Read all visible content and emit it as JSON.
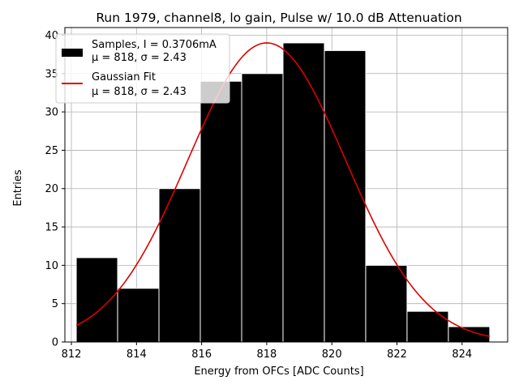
{
  "chart_data": {
    "type": "bar",
    "title": "Run 1979, channel8, lo gain, Pulse w/ 10.0 dB Attenuation",
    "xlabel": "Energy from OFCs [ADC Counts]",
    "ylabel": "Entries",
    "xlim": [
      811.8,
      825.4
    ],
    "ylim": [
      0,
      41
    ],
    "xticks": [
      812,
      814,
      816,
      818,
      820,
      822,
      824
    ],
    "yticks": [
      0,
      5,
      10,
      15,
      20,
      25,
      30,
      35,
      40
    ],
    "grid": true,
    "legend_position": "top-left",
    "histogram": {
      "name_line1": "Samples, I = 0.3706mA",
      "name_line2": "μ = 818, σ = 2.43",
      "color": "#000000",
      "edge_color": "#ffffff",
      "bins": [
        {
          "left": 812.15,
          "right": 813.42,
          "count": 11
        },
        {
          "left": 813.42,
          "right": 814.69,
          "count": 7
        },
        {
          "left": 814.69,
          "right": 815.96,
          "count": 20
        },
        {
          "left": 815.96,
          "right": 817.23,
          "count": 34
        },
        {
          "left": 817.23,
          "right": 818.5,
          "count": 35
        },
        {
          "left": 818.5,
          "right": 819.77,
          "count": 39
        },
        {
          "left": 819.77,
          "right": 821.04,
          "count": 38
        },
        {
          "left": 821.04,
          "right": 822.31,
          "count": 10
        },
        {
          "left": 822.31,
          "right": 823.58,
          "count": 4
        },
        {
          "left": 823.58,
          "right": 824.85,
          "count": 2
        }
      ]
    },
    "fit": {
      "name_line1": "Gaussian Fit",
      "name_line2": "μ = 818, σ = 2.43",
      "color": "#dd0000",
      "mu": 818,
      "sigma": 2.43,
      "amplitude": 39,
      "x_range": [
        812.15,
        824.85
      ]
    }
  }
}
